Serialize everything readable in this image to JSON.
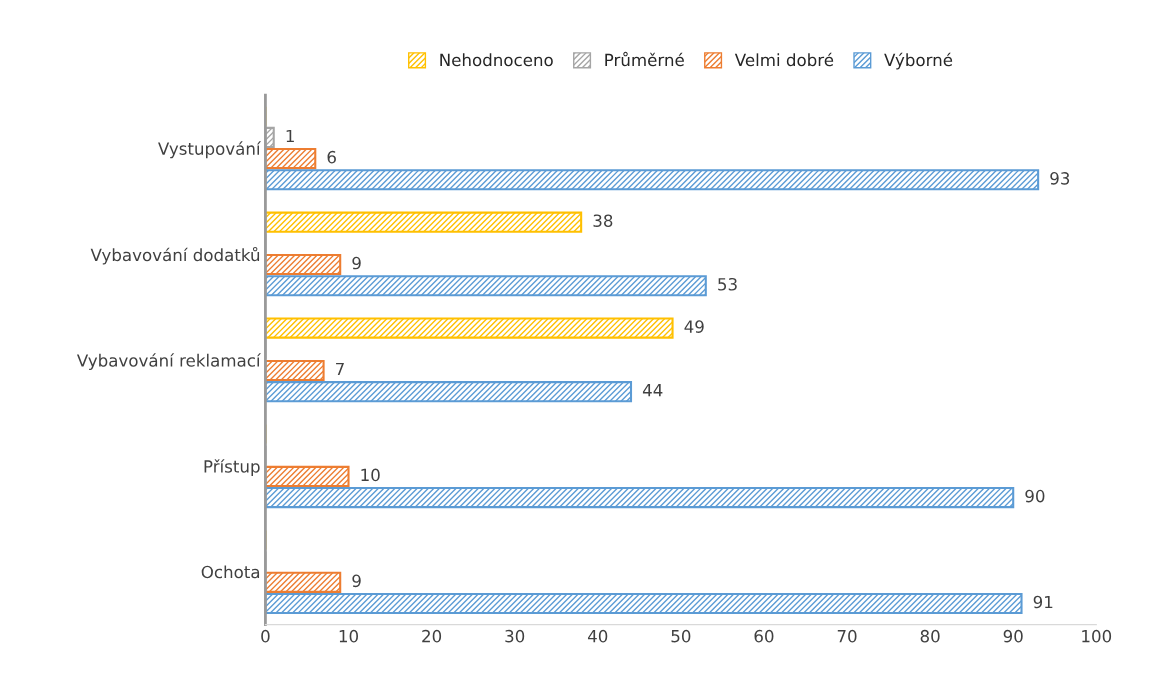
{
  "chart_data": {
    "type": "bar",
    "orientation": "horizontal",
    "categories": [
      "Vystupování",
      "Vybavování dodatků",
      "Vybavování reklamací",
      "Přístup",
      "Ochota"
    ],
    "series": [
      {
        "name": "Nehodnoceno",
        "color": "#ffc000",
        "values": [
          0,
          38,
          49,
          0,
          0
        ],
        "value_labels": [
          null,
          "38",
          "49",
          null,
          null
        ]
      },
      {
        "name": "Průměrné",
        "color": "#a5a5a5",
        "values": [
          1,
          0,
          0,
          0,
          0
        ],
        "value_labels": [
          "1",
          null,
          null,
          null,
          null
        ]
      },
      {
        "name": "Velmi dobré",
        "color": "#ed7d31",
        "values": [
          6,
          9,
          7,
          10,
          9
        ],
        "value_labels": [
          "6",
          "9",
          "7",
          "10",
          "9"
        ]
      },
      {
        "name": "Výborné",
        "color": "#5b9bd5",
        "values": [
          93,
          53,
          44,
          90,
          91
        ],
        "value_labels": [
          "93",
          "53",
          "44",
          "90",
          "91"
        ]
      }
    ],
    "xlim": [
      0,
      100
    ],
    "xticks": [
      0,
      10,
      20,
      30,
      40,
      50,
      60,
      70,
      80,
      90,
      100
    ],
    "grid": false,
    "legend": "top"
  }
}
